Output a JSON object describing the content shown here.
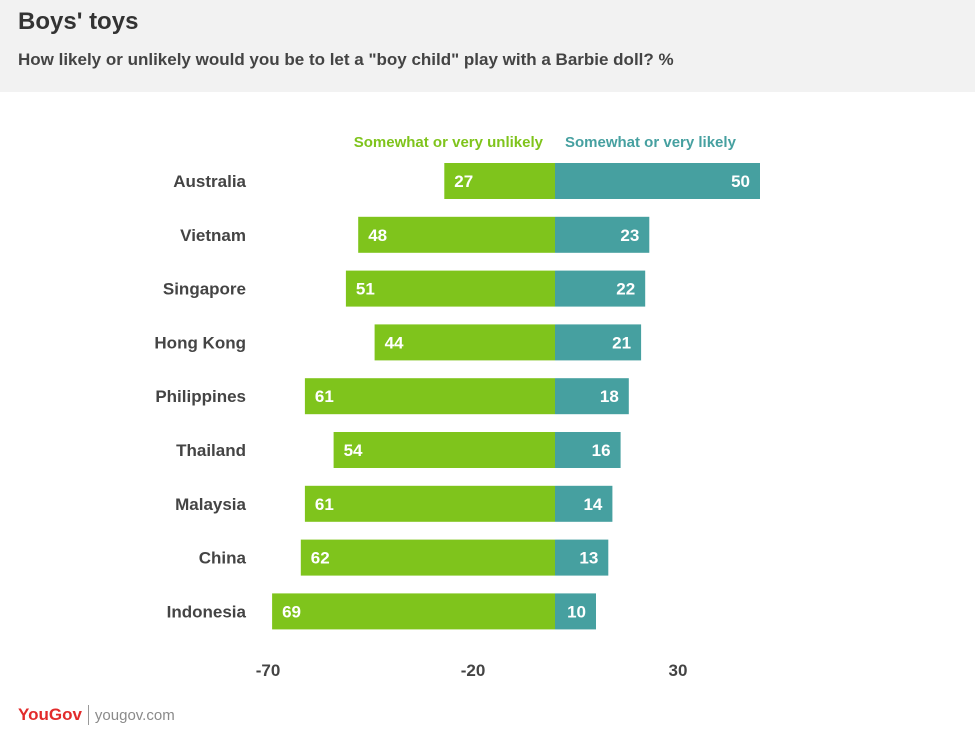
{
  "header": {
    "title": "Boys' toys",
    "subtitle": "How likely or unlikely would you be to let a \"boy child\" play with a Barbie doll? %"
  },
  "footer": {
    "logo_text": "YouGov",
    "site": "yougov.com"
  },
  "chart_data": {
    "type": "bar",
    "orientation": "horizontal-diverging",
    "categories": [
      "Australia",
      "Vietnam",
      "Singapore",
      "Hong Kong",
      "Philippines",
      "Thailand",
      "Malaysia",
      "China",
      "Indonesia"
    ],
    "series": [
      {
        "name": "Somewhat or very unlikely",
        "values": [
          27,
          48,
          51,
          44,
          61,
          54,
          61,
          62,
          69
        ],
        "color": "#7fc41c",
        "direction": "negative"
      },
      {
        "name": "Somewhat or very likely",
        "values": [
          50,
          23,
          22,
          21,
          18,
          16,
          14,
          13,
          10
        ],
        "color": "#46a0a0",
        "direction": "positive"
      }
    ],
    "x_ticks": [
      "-70",
      "-20",
      "30"
    ],
    "xlim": [
      -70,
      50
    ],
    "grid": false,
    "legend_position": "top",
    "data_labels": true
  }
}
